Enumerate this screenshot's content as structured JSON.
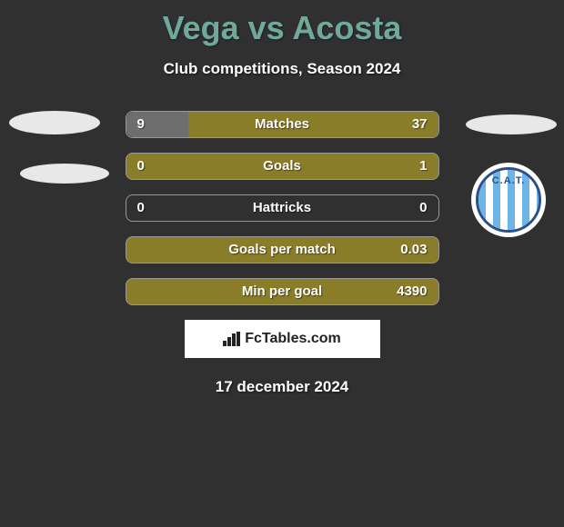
{
  "title": "Vega vs Acosta",
  "subtitle": "Club competitions, Season 2024",
  "date": "17 december 2024",
  "brand": "FcTables.com",
  "badge_letters": "C.A.T.",
  "colors": {
    "background": "#303030",
    "title": "#6fa99c",
    "bar_left": "#6e6e6e",
    "bar_right": "#8a7d29",
    "border": "#989898",
    "text": "#ffffff",
    "brand_bg": "#ffffff",
    "badge_stripe": "#6cb5e6",
    "badge_border": "#2d4f8e"
  },
  "stats": [
    {
      "label": "Matches",
      "left_val": "9",
      "right_val": "37",
      "left_pct": 20,
      "right_pct": 80
    },
    {
      "label": "Goals",
      "left_val": "0",
      "right_val": "1",
      "left_pct": 0,
      "right_pct": 100
    },
    {
      "label": "Hattricks",
      "left_val": "0",
      "right_val": "0",
      "left_pct": 0,
      "right_pct": 0
    },
    {
      "label": "Goals per match",
      "left_val": "",
      "right_val": "0.03",
      "left_pct": 0,
      "right_pct": 100
    },
    {
      "label": "Min per goal",
      "left_val": "",
      "right_val": "4390",
      "left_pct": 0,
      "right_pct": 100
    }
  ]
}
